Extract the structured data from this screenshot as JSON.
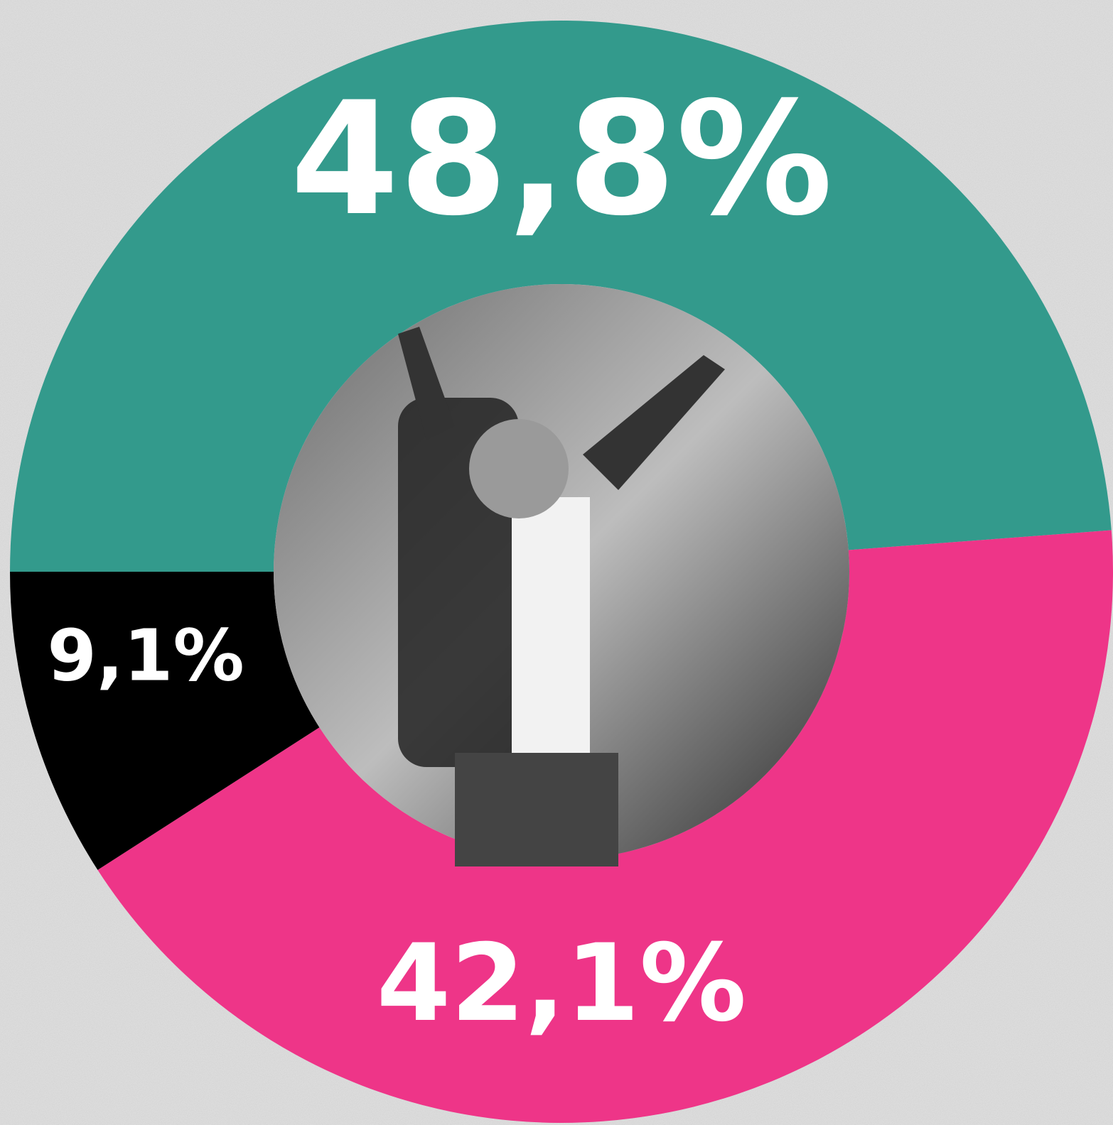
{
  "chart_data": {
    "type": "donut",
    "values": [
      48.8,
      42.1,
      9.1
    ],
    "value_labels": [
      "48,8%",
      "42,1%",
      "9,1%"
    ],
    "colors": [
      "#339a8c",
      "#ee3588",
      "#000000"
    ]
  }
}
